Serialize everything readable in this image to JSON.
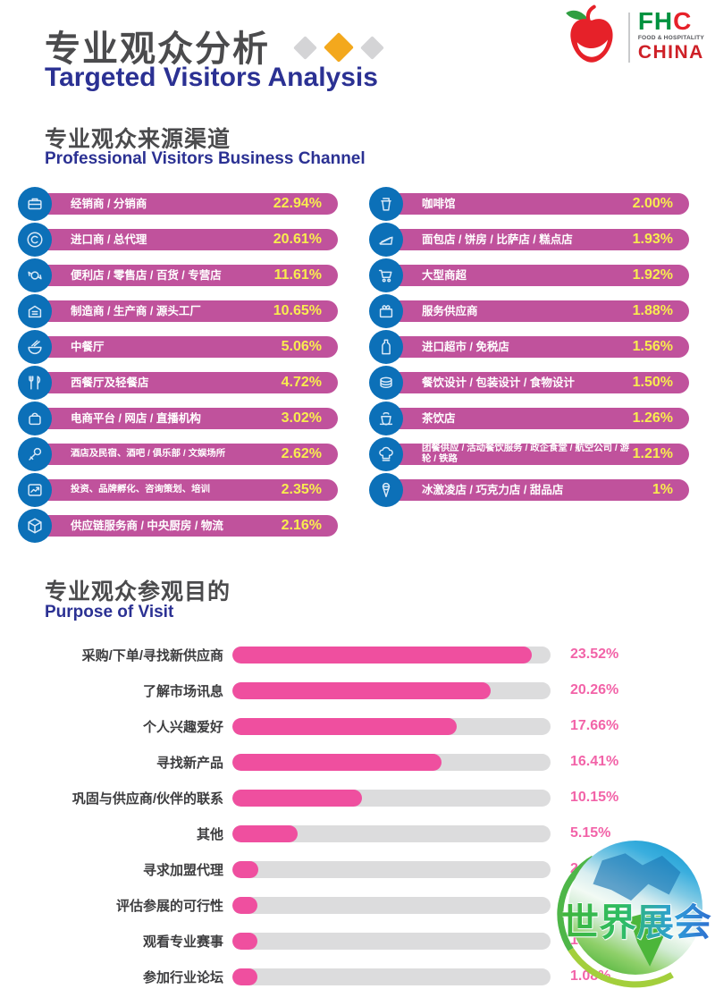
{
  "header": {
    "title_zh": "专业观众分析",
    "title_en": "Targeted Visitors Analysis"
  },
  "logo": {
    "fh": "FH",
    "c": "C",
    "tagline": "FOOD & HOSPITALITY",
    "china": "CHINA"
  },
  "channel_section": {
    "title_zh": "专业观众来源渠道",
    "title_en": "Professional Visitors Business Channel"
  },
  "purpose_section": {
    "title_zh": "专业观众参观目的",
    "title_en": "Purpose of Visit"
  },
  "watermark": {
    "text": "世界展会"
  },
  "colors": {
    "magenta": "#c0529c",
    "yellow": "#f8ec4f",
    "iconblue": "#0c70b8",
    "blue": "#2b3193",
    "pink": "#ef4f9f",
    "pinktext": "#f263a8",
    "track": "#dcdcdd",
    "green": "#00923f",
    "red": "#e62129"
  },
  "chart_data": [
    {
      "type": "bar",
      "title": "专业观众来源渠道 / Professional Visitors Business Channel",
      "unit": "%",
      "layout": "two-column full-width pills with icon badges, value labels only",
      "series": [
        {
          "name": "left",
          "rows": [
            {
              "label": "经销商 / 分销商",
              "value": 22.94,
              "pct": "22.94%",
              "icon": "briefcase-icon"
            },
            {
              "label": "进口商 / 总代理",
              "value": 20.61,
              "pct": "20.61%",
              "icon": "copyright-icon"
            },
            {
              "label": "便利店 / 零售店 / 百货 / 专营店",
              "value": 11.61,
              "pct": "11.61%",
              "icon": "candy-icon"
            },
            {
              "label": "制造商 / 生产商 / 源头工厂",
              "value": 10.65,
              "pct": "10.65%",
              "icon": "factory-icon"
            },
            {
              "label": "中餐厅",
              "value": 5.06,
              "pct": "5.06%",
              "icon": "noodle-bowl-icon"
            },
            {
              "label": "西餐厅及轻餐店",
              "value": 4.72,
              "pct": "4.72%",
              "icon": "cutlery-icon"
            },
            {
              "label": "电商平台 / 网店 / 直播机构",
              "value": 3.02,
              "pct": "3.02%",
              "icon": "shopping-bag-icon"
            },
            {
              "label": "酒店及民宿、酒吧 / 俱乐部 / 文娱场所",
              "value": 2.62,
              "pct": "2.62%",
              "icon": "microphone-icon",
              "small": true
            },
            {
              "label": "投资、品牌孵化、咨询策划、培训",
              "value": 2.35,
              "pct": "2.35%",
              "icon": "trend-chart-icon",
              "small": true
            },
            {
              "label": "供应链服务商 / 中央厨房 / 物流",
              "value": 2.16,
              "pct": "2.16%",
              "icon": "package-icon"
            }
          ]
        },
        {
          "name": "right",
          "rows": [
            {
              "label": "咖啡馆",
              "value": 2.0,
              "pct": "2.00%",
              "icon": "coffee-cup-icon"
            },
            {
              "label": "面包店 / 饼房 / 比萨店 / 糕点店",
              "value": 1.93,
              "pct": "1.93%",
              "icon": "cake-slice-icon"
            },
            {
              "label": "大型商超",
              "value": 1.92,
              "pct": "1.92%",
              "icon": "shopping-cart-icon"
            },
            {
              "label": "服务供应商",
              "value": 1.88,
              "pct": "1.88%",
              "icon": "gift-icon"
            },
            {
              "label": "进口超市 / 免税店",
              "value": 1.56,
              "pct": "1.56%",
              "icon": "bottle-icon"
            },
            {
              "label": "餐饮设计 / 包装设计 / 食物设计",
              "value": 1.5,
              "pct": "1.50%",
              "icon": "cake-icon"
            },
            {
              "label": "茶饮店",
              "value": 1.26,
              "pct": "1.26%",
              "icon": "tea-cup-icon"
            },
            {
              "label": "团餐供应 / 活动餐饮服务 / 政企食堂 / 航空公司 / 游轮 / 铁路",
              "value": 1.21,
              "pct": "1.21%",
              "icon": "chef-hat-icon",
              "small": true
            },
            {
              "label": "冰激凌店 / 巧克力店 / 甜品店",
              "value": 1,
              "pct": "1%",
              "icon": "ice-cream-icon"
            }
          ]
        }
      ]
    },
    {
      "type": "bar",
      "orientation": "horizontal",
      "title": "专业观众参观目的 / Purpose of Visit",
      "xlim": [
        0,
        25
      ],
      "grid": "off",
      "legend": "none",
      "categories": [
        "采购/下单/寻找新供应商",
        "了解市场讯息",
        "个人兴趣爱好",
        "寻找新产品",
        "巩固与供应商/伙伴的联系",
        "其他",
        "寻求加盟代理",
        "评估参展的可行性",
        "观看专业赛事",
        "参加行业论坛"
      ],
      "values": [
        23.52,
        20.26,
        17.66,
        16.41,
        10.15,
        5.15,
        2.07,
        1.97,
        1.44,
        1.08
      ],
      "value_labels": [
        "23.52%",
        "20.26%",
        "17.66%",
        "16.41%",
        "10.15%",
        "5.15%",
        "2.07%",
        "1.97%",
        "1.44%",
        "1.08%"
      ]
    }
  ]
}
